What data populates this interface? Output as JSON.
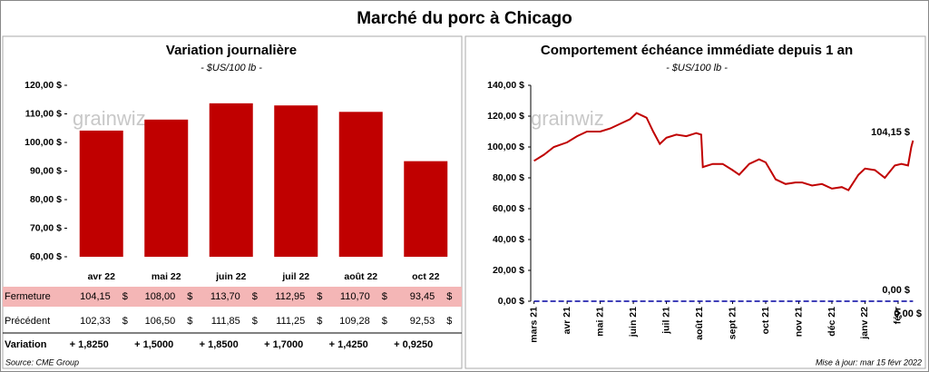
{
  "title": "Marché du porc à Chicago",
  "watermark": "grainwiz",
  "chart_data": [
    {
      "type": "bar",
      "title": "Variation journalière",
      "subtitle": "- $US/100 lb -",
      "color": "#c00000",
      "categories": [
        "avr 22",
        "mai 22",
        "juin 22",
        "juil 22",
        "août 22",
        "oct 22"
      ],
      "values": [
        104.15,
        108.0,
        113.7,
        112.95,
        110.7,
        93.45
      ],
      "ylim": [
        60,
        120
      ],
      "yticks": [
        {
          "value": 60,
          "label": "60,00 $"
        },
        {
          "value": 70,
          "label": "70,00 $"
        },
        {
          "value": 80,
          "label": "80,00 $"
        },
        {
          "value": 90,
          "label": "90,00 $"
        },
        {
          "value": 100,
          "label": "100,00 $"
        },
        {
          "value": 110,
          "label": "110,00 $"
        },
        {
          "value": 120,
          "label": "120,00 $"
        }
      ]
    },
    {
      "type": "line",
      "title": "Comportement  échéance immédiate depuis 1 an",
      "subtitle": "- $US/100 lb -",
      "x": [
        0,
        0.3,
        0.6,
        1,
        1.3,
        1.6,
        2,
        2.3,
        2.6,
        2.9,
        3.1,
        3.4,
        3.6,
        3.8,
        4,
        4.3,
        4.6,
        4.9,
        5.05,
        5.1,
        5.4,
        5.7,
        6,
        6.2,
        6.5,
        6.8,
        7,
        7.3,
        7.6,
        7.9,
        8.1,
        8.4,
        8.7,
        9,
        9.3,
        9.5,
        9.8,
        10,
        10.3,
        10.6,
        10.9,
        11.1,
        11.3,
        11.4,
        11.45
      ],
      "series": [
        {
          "color": "#c00000",
          "values": [
            91,
            95,
            100,
            103,
            107,
            110,
            110,
            112,
            115,
            118,
            122,
            119,
            110,
            102,
            106,
            108,
            107,
            109,
            108,
            87,
            89,
            89,
            85,
            82,
            89,
            92,
            90,
            79,
            76,
            77,
            77,
            75,
            76,
            73,
            74,
            72,
            82,
            86,
            85,
            80,
            88,
            89,
            88,
            100,
            104.15
          ]
        },
        {
          "color": "#0000a0",
          "dashed": true,
          "values": [
            0,
            0,
            0,
            0,
            0,
            0,
            0,
            0,
            0,
            0,
            0,
            0,
            0,
            0,
            0,
            0,
            0,
            0,
            0,
            0,
            0,
            0,
            0,
            0,
            0,
            0,
            0,
            0,
            0,
            0,
            0,
            0,
            0,
            0,
            0,
            0,
            0,
            0,
            0,
            0,
            0,
            0,
            0,
            0,
            0
          ]
        }
      ],
      "xlim": [
        -0.1,
        11.55
      ],
      "xticks": [
        {
          "value": 0,
          "label": "mars 21"
        },
        {
          "value": 1,
          "label": "avr 21"
        },
        {
          "value": 2,
          "label": "mai 21"
        },
        {
          "value": 3,
          "label": "juin 21"
        },
        {
          "value": 4,
          "label": "juil 21"
        },
        {
          "value": 5,
          "label": "août 21"
        },
        {
          "value": 6,
          "label": "sept 21"
        },
        {
          "value": 7,
          "label": "oct 21"
        },
        {
          "value": 8,
          "label": "nov 21"
        },
        {
          "value": 9,
          "label": "déc 21"
        },
        {
          "value": 10,
          "label": "janv 22"
        },
        {
          "value": 11,
          "label": "févr"
        }
      ],
      "ylim": [
        0,
        140
      ],
      "yticks": [
        {
          "value": 0,
          "label": "0,00 $"
        },
        {
          "value": 20,
          "label": "20,00 $"
        },
        {
          "value": 40,
          "label": "40,00 $"
        },
        {
          "value": 60,
          "label": "60,00 $"
        },
        {
          "value": 80,
          "label": "80,00 $"
        },
        {
          "value": 100,
          "label": "100,00 $"
        },
        {
          "value": 120,
          "label": "120,00 $"
        },
        {
          "value": 140,
          "label": "140,00 $"
        }
      ],
      "annotations": [
        {
          "text": "104,15 $",
          "color": "#000000"
        },
        {
          "text": "0,00 $",
          "color": "#0000a0"
        },
        {
          "text": "0,00 $",
          "color": "#e00000"
        }
      ]
    }
  ],
  "table": {
    "unit": "$",
    "rows": [
      {
        "label": "Fermeture",
        "cells": [
          "104,15",
          "108,00",
          "113,70",
          "112,95",
          "110,70",
          "93,45"
        ]
      },
      {
        "label": "Précédent",
        "cells": [
          "102,33",
          "106,50",
          "111,85",
          "111,25",
          "109,28",
          "92,53"
        ]
      },
      {
        "label": "Variation",
        "cells": [
          "+ 1,8250",
          "+ 1,5000",
          "+ 1,8500",
          "+ 1,7000",
          "+ 1,4250",
          "+ 0,9250"
        ]
      }
    ]
  },
  "footer": {
    "source": "Source: CME Group",
    "updated": "Mise à jour: mar 15 févr 2022"
  }
}
